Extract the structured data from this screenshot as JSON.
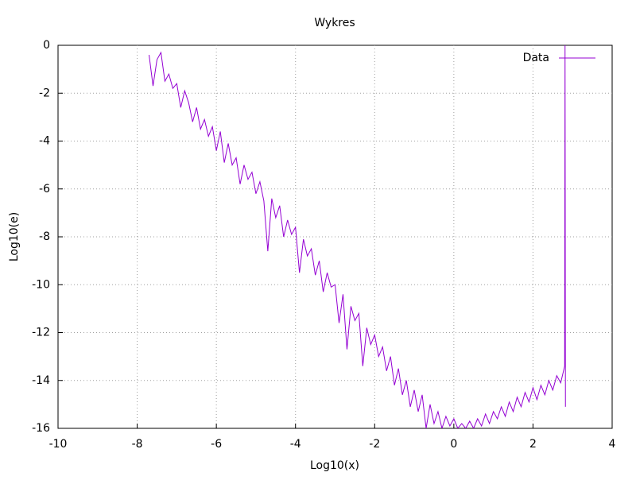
{
  "chart_data": {
    "type": "line",
    "title": "Wykres",
    "x_label": "Log10(x)",
    "y_label": "Log10(e)",
    "xlim": [
      -10,
      4
    ],
    "xticks": [
      -10,
      -8,
      -6,
      -4,
      -2,
      0,
      2,
      4
    ],
    "ylim": [
      -16,
      0
    ],
    "yticks": [
      0,
      -2,
      -4,
      -6,
      -8,
      -10,
      -12,
      -14,
      -16
    ],
    "grid": true,
    "legend": "top-right",
    "series": [
      {
        "name": "Data",
        "color": "#9400d3",
        "x": [
          -7.7,
          -7.6,
          -7.5,
          -7.4,
          -7.3,
          -7.2,
          -7.1,
          -7.0,
          -6.9,
          -6.8,
          -6.7,
          -6.6,
          -6.5,
          -6.4,
          -6.3,
          -6.2,
          -6.1,
          -6.0,
          -5.9,
          -5.8,
          -5.7,
          -5.6,
          -5.5,
          -5.4,
          -5.3,
          -5.2,
          -5.1,
          -5.0,
          -4.9,
          -4.8,
          -4.7,
          -4.6,
          -4.5,
          -4.4,
          -4.3,
          -4.2,
          -4.1,
          -4.0,
          -3.9,
          -3.8,
          -3.7,
          -3.6,
          -3.5,
          -3.4,
          -3.3,
          -3.2,
          -3.1,
          -3.0,
          -2.9,
          -2.8,
          -2.7,
          -2.6,
          -2.5,
          -2.4,
          -2.3,
          -2.2,
          -2.1,
          -2.0,
          -1.9,
          -1.8,
          -1.7,
          -1.6,
          -1.5,
          -1.4,
          -1.3,
          -1.2,
          -1.1,
          -1.0,
          -0.9,
          -0.8,
          -0.7,
          -0.6,
          -0.5,
          -0.4,
          -0.3,
          -0.2,
          -0.1,
          0.0,
          0.1,
          0.2,
          0.3,
          0.4,
          0.5,
          0.6,
          0.7,
          0.8,
          0.9,
          1.0,
          1.1,
          1.2,
          1.3,
          1.4,
          1.5,
          1.6,
          1.7,
          1.8,
          1.9,
          2.0,
          2.1,
          2.2,
          2.3,
          2.4,
          2.5,
          2.6,
          2.7,
          2.8,
          2.81,
          2.82
        ],
        "values": [
          -0.4,
          -1.7,
          -0.6,
          -0.3,
          -1.5,
          -1.2,
          -1.8,
          -1.6,
          -2.6,
          -1.9,
          -2.4,
          -3.2,
          -2.6,
          -3.5,
          -3.1,
          -3.8,
          -3.4,
          -4.4,
          -3.6,
          -4.9,
          -4.1,
          -5.0,
          -4.7,
          -5.8,
          -5.0,
          -5.6,
          -5.3,
          -6.2,
          -5.7,
          -6.5,
          -8.6,
          -6.4,
          -7.2,
          -6.7,
          -8.0,
          -7.3,
          -7.9,
          -7.6,
          -9.5,
          -8.1,
          -8.8,
          -8.5,
          -9.6,
          -9.0,
          -10.3,
          -9.5,
          -10.1,
          -10.0,
          -11.6,
          -10.4,
          -12.7,
          -10.9,
          -11.5,
          -11.2,
          -13.4,
          -11.8,
          -12.5,
          -12.1,
          -13.0,
          -12.6,
          -13.6,
          -13.0,
          -14.2,
          -13.5,
          -14.6,
          -14.0,
          -15.1,
          -14.4,
          -15.3,
          -14.6,
          -16.0,
          -15.0,
          -15.8,
          -15.3,
          -16.0,
          -15.5,
          -15.9,
          -15.6,
          -16.0,
          -15.8,
          -16.0,
          -15.7,
          -16.0,
          -15.6,
          -15.9,
          -15.4,
          -15.8,
          -15.3,
          -15.6,
          -15.1,
          -15.5,
          -14.9,
          -15.3,
          -14.7,
          -15.1,
          -14.5,
          -14.9,
          -14.3,
          -14.8,
          -14.2,
          -14.6,
          -14.0,
          -14.4,
          -13.8,
          -14.1,
          -13.4,
          0,
          -15.1
        ]
      }
    ]
  }
}
